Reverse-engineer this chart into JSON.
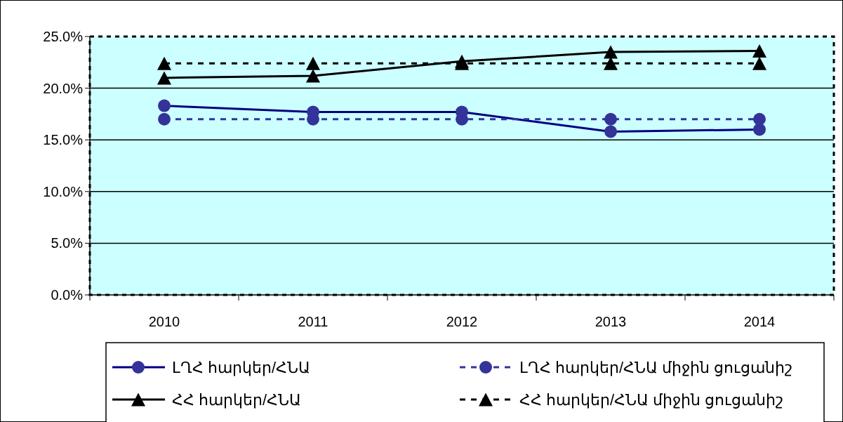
{
  "chart_data": {
    "type": "line",
    "categories": [
      "2010",
      "2011",
      "2012",
      "2013",
      "2014"
    ],
    "series": [
      {
        "name": "ԼՂՀ հարկեր/ՀՆԱ",
        "color": "#000080",
        "values": [
          18.3,
          17.7,
          17.7,
          15.8,
          16.0
        ],
        "marker": "circle",
        "line_style": "solid"
      },
      {
        "name": "ԼՂՀ հարկեր/ՀՆԱ միջին ցուցանիշ",
        "color": "#333399",
        "values": [
          17.0,
          17.0,
          17.0,
          17.0,
          17.0
        ],
        "marker": "circle",
        "line_style": "dashed"
      },
      {
        "name": "ՀՀ հարկեր/ՀՆԱ",
        "color": "#000000",
        "values": [
          21.0,
          21.2,
          22.6,
          23.5,
          23.6
        ],
        "marker": "triangle",
        "line_style": "solid"
      },
      {
        "name": "ՀՀ հարկեր/ՀՆԱ միջին ցուցանիշ",
        "color": "#000000",
        "values": [
          22.4,
          22.4,
          22.4,
          22.4,
          22.4
        ],
        "marker": "triangle",
        "line_style": "dashed"
      }
    ],
    "ylim": [
      0,
      25
    ],
    "yticks": [
      {
        "value": 0,
        "label": "0.0%"
      },
      {
        "value": 5,
        "label": "5.0%"
      },
      {
        "value": 10,
        "label": "10.0%"
      },
      {
        "value": 15,
        "label": "15.0%"
      },
      {
        "value": 20,
        "label": "20.0%"
      },
      {
        "value": 25,
        "label": "25.0%"
      }
    ],
    "grid": "y",
    "legend": "bottom"
  }
}
